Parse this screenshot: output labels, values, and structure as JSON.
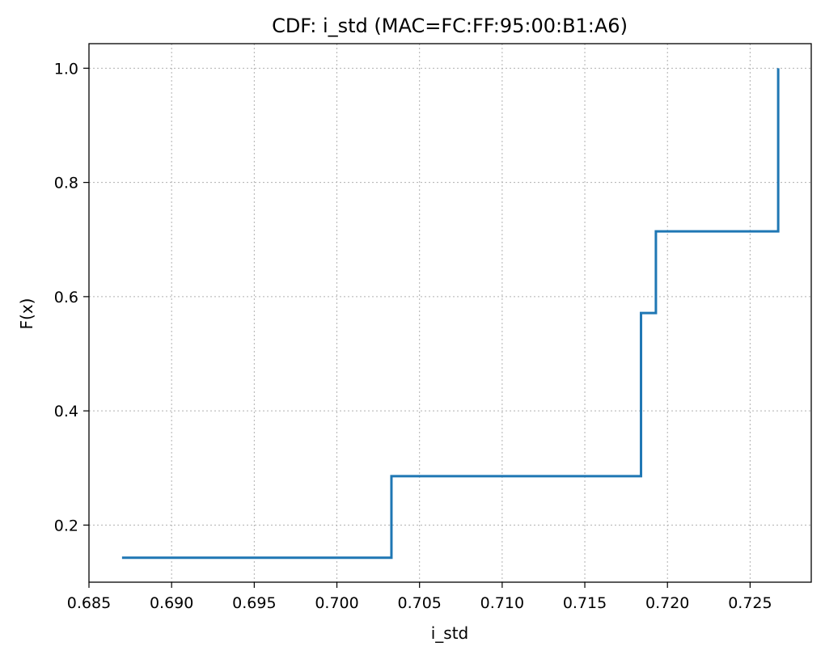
{
  "colors": {
    "series": "#1f77b4",
    "background": "#ffffff"
  },
  "chart_data": {
    "type": "line",
    "step": "post",
    "title": "CDF: i_std (MAC=FC:FF:95:00:B1:A6)",
    "xlabel": "i_std",
    "ylabel": "F(x)",
    "xlim": [
      0.685,
      0.7287
    ],
    "ylim": [
      0.1,
      1.043
    ],
    "xticks": [
      0.685,
      0.69,
      0.695,
      0.7,
      0.705,
      0.71,
      0.715,
      0.72,
      0.725
    ],
    "xtick_labels": [
      "0.685",
      "0.690",
      "0.695",
      "0.700",
      "0.705",
      "0.710",
      "0.715",
      "0.720",
      "0.725"
    ],
    "yticks": [
      0.2,
      0.4,
      0.6,
      0.8,
      1.0
    ],
    "ytick_labels": [
      "0.2",
      "0.4",
      "0.6",
      "0.8",
      "1.0"
    ],
    "grid": true,
    "series": [
      {
        "x": [
          0.687,
          0.7033,
          0.7184,
          0.7193,
          0.7267
        ],
        "y": [
          0.1429,
          0.2857,
          0.5714,
          0.7143,
          1.0
        ]
      }
    ]
  }
}
